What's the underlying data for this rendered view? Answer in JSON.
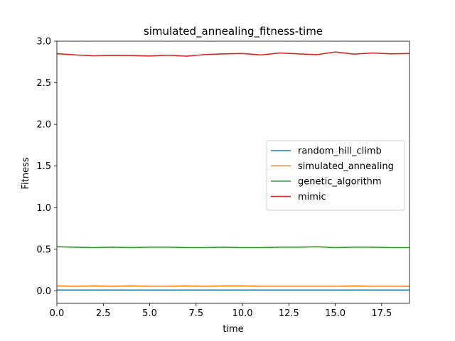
{
  "chart_data": {
    "type": "line",
    "title": "simulated_annealing_fitness-time",
    "xlabel": "time",
    "ylabel": "Fitness",
    "xlim": [
      0,
      19
    ],
    "ylim": [
      -0.15,
      3.0
    ],
    "xticks": [
      0.0,
      2.5,
      5.0,
      7.5,
      10.0,
      12.5,
      15.0,
      17.5
    ],
    "xtick_labels": [
      "0.0",
      "2.5",
      "5.0",
      "7.5",
      "10.0",
      "12.5",
      "15.0",
      "17.5"
    ],
    "yticks": [
      0.0,
      0.5,
      1.0,
      1.5,
      2.0,
      2.5,
      3.0
    ],
    "ytick_labels": [
      "0.0",
      "0.5",
      "1.0",
      "1.5",
      "2.0",
      "2.5",
      "3.0"
    ],
    "grid": false,
    "legend_position": "center-right",
    "x": [
      0,
      1,
      2,
      3,
      4,
      5,
      6,
      7,
      8,
      9,
      10,
      11,
      12,
      13,
      14,
      15,
      16,
      17,
      18,
      19
    ],
    "series": [
      {
        "name": "random_hill_climb",
        "color": "#1f77b4",
        "values": [
          0.01,
          0.01,
          0.01,
          0.01,
          0.01,
          0.01,
          0.01,
          0.01,
          0.01,
          0.01,
          0.01,
          0.01,
          0.01,
          0.01,
          0.01,
          0.01,
          0.01,
          0.01,
          0.01,
          0.01
        ]
      },
      {
        "name": "simulated_annealing",
        "color": "#ff7f0e",
        "values": [
          0.06,
          0.055,
          0.06,
          0.055,
          0.06,
          0.055,
          0.055,
          0.06,
          0.055,
          0.06,
          0.06,
          0.055,
          0.055,
          0.055,
          0.055,
          0.055,
          0.06,
          0.055,
          0.055,
          0.055
        ]
      },
      {
        "name": "genetic_algorithm",
        "color": "#2ca02c",
        "values": [
          0.53,
          0.525,
          0.52,
          0.525,
          0.52,
          0.525,
          0.525,
          0.52,
          0.52,
          0.525,
          0.52,
          0.52,
          0.525,
          0.525,
          0.53,
          0.52,
          0.525,
          0.525,
          0.52,
          0.52
        ]
      },
      {
        "name": "mimic",
        "color": "#d62728",
        "values": [
          2.85,
          2.835,
          2.825,
          2.83,
          2.828,
          2.822,
          2.832,
          2.82,
          2.84,
          2.848,
          2.852,
          2.835,
          2.858,
          2.848,
          2.838,
          2.87,
          2.845,
          2.858,
          2.848,
          2.852
        ]
      }
    ]
  }
}
